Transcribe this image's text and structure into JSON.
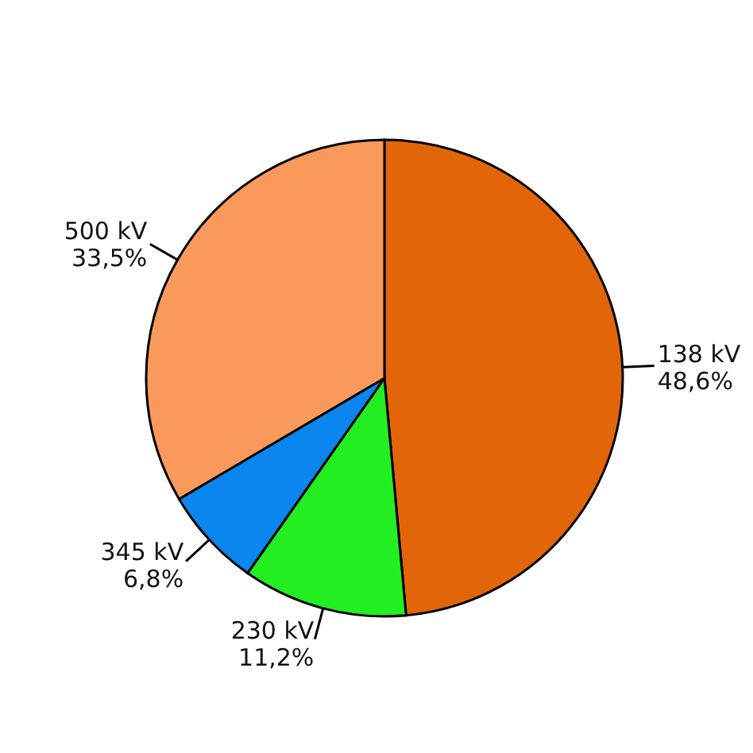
{
  "chart_data": {
    "type": "pie",
    "categories": [
      "138 kV",
      "230 kV",
      "345 kV",
      "500 kV"
    ],
    "values": [
      48.6,
      11.2,
      6.8,
      33.5
    ],
    "value_labels": [
      "48,6%",
      "11,2%",
      "6,8%",
      "33,5%"
    ],
    "colors": [
      "#e36509",
      "#22ee22",
      "#0a86ee",
      "#f99a5c"
    ],
    "legend": false
  }
}
